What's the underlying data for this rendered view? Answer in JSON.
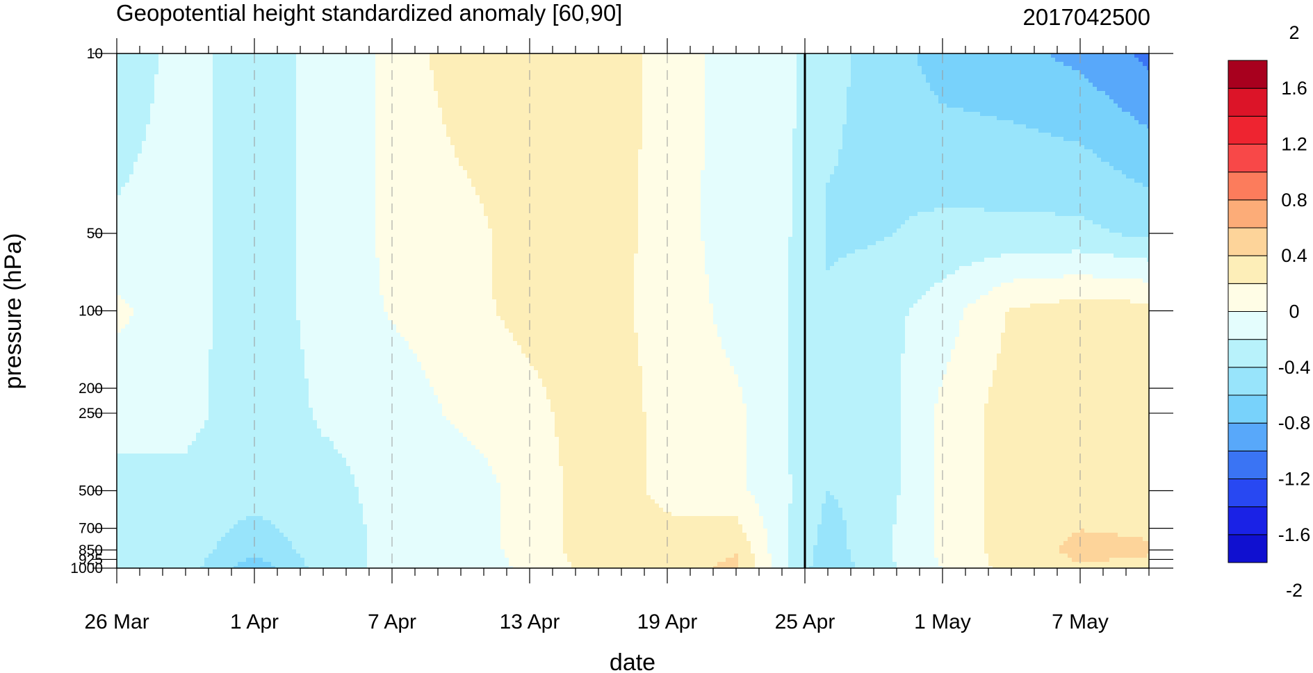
{
  "chart_data": {
    "type": "heatmap",
    "title": "Geopotential height standardized anomaly [60,90]",
    "date_label": "2017042500",
    "xlabel": "date",
    "ylabel": "pressure (hPa)",
    "x_ticks": [
      "26 Mar",
      "1 Apr",
      "7 Apr",
      "13 Apr",
      "19 Apr",
      "25 Apr",
      "1 May",
      "7 May"
    ],
    "x_tick_days": [
      0,
      6,
      12,
      18,
      24,
      30,
      36,
      42
    ],
    "x_range_days": [
      0,
      45
    ],
    "marker_day": 30,
    "y_scale": "log",
    "y_range": [
      1000,
      10
    ],
    "y_ticks": [
      "10",
      "50",
      "100",
      "200",
      "250",
      "500",
      "700",
      "850",
      "925",
      "1000"
    ],
    "levels": [
      -2,
      -1.8,
      -1.6,
      -1.4,
      -1.2,
      -1,
      -0.8,
      -0.6,
      -0.4,
      -0.2,
      0,
      0.2,
      0.4,
      0.6,
      0.8,
      1,
      1.2,
      1.4,
      1.6,
      1.8,
      2
    ],
    "colorbar_labels": [
      "2",
      "1.6",
      "1.2",
      "0.8",
      "0.4",
      "0",
      "-0.4",
      "-0.8",
      "-1.2",
      "-1.6",
      "-2"
    ],
    "colors": [
      "#1010d0",
      "#1a22e6",
      "#2848f2",
      "#3a74f4",
      "#58a8fa",
      "#78d2fb",
      "#98e4fb",
      "#b8f2fb",
      "#e4fdfd",
      "#fffde6",
      "#fdeeb8",
      "#fdd49a",
      "#fcac78",
      "#fc7c5c",
      "#f84848",
      "#ee2430",
      "#dc1428",
      "#a8001e"
    ],
    "field_days": [
      0,
      3,
      6,
      9,
      12,
      15,
      18,
      21,
      24,
      27,
      29,
      31,
      33,
      36,
      39,
      42,
      45
    ],
    "field_levels": [
      10,
      50,
      100,
      250,
      500,
      850,
      1000
    ],
    "field": [
      [
        -0.28,
        -0.15,
        -0.27,
        -0.15,
        0.05,
        0.33,
        0.35,
        0.35,
        0.12,
        -0.1,
        -0.12,
        -0.35,
        -0.45,
        -0.7,
        -0.75,
        -0.85,
        -1.05
      ],
      [
        -0.18,
        -0.15,
        -0.28,
        -0.15,
        0.05,
        0.12,
        0.3,
        0.3,
        0.12,
        -0.12,
        -0.15,
        -0.42,
        -0.42,
        -0.35,
        -0.35,
        -0.35,
        -0.45
      ],
      [
        0.05,
        -0.15,
        -0.28,
        -0.15,
        0.02,
        0.15,
        0.25,
        0.25,
        0.15,
        -0.08,
        -0.18,
        -0.38,
        -0.3,
        -0.1,
        0.22,
        0.3,
        0.28
      ],
      [
        -0.15,
        -0.15,
        -0.3,
        -0.18,
        -0.15,
        0.05,
        0.15,
        0.3,
        0.15,
        0.05,
        -0.18,
        -0.4,
        -0.35,
        0.05,
        0.3,
        0.3,
        0.3
      ],
      [
        -0.25,
        -0.25,
        -0.3,
        -0.25,
        -0.15,
        -0.15,
        0.1,
        0.3,
        0.15,
        0.05,
        -0.15,
        -0.4,
        -0.35,
        0.05,
        0.3,
        0.3,
        0.3
      ],
      [
        -0.35,
        -0.3,
        -0.55,
        -0.3,
        -0.15,
        -0.15,
        0.1,
        0.3,
        0.28,
        0.38,
        -0.15,
        -0.5,
        -0.28,
        0.05,
        0.3,
        0.45,
        0.42
      ],
      [
        -0.38,
        -0.3,
        -0.72,
        -0.3,
        -0.15,
        -0.15,
        0.05,
        0.3,
        0.3,
        0.45,
        -0.15,
        -0.55,
        -0.3,
        0.0,
        0.28,
        0.38,
        0.35
      ]
    ]
  }
}
